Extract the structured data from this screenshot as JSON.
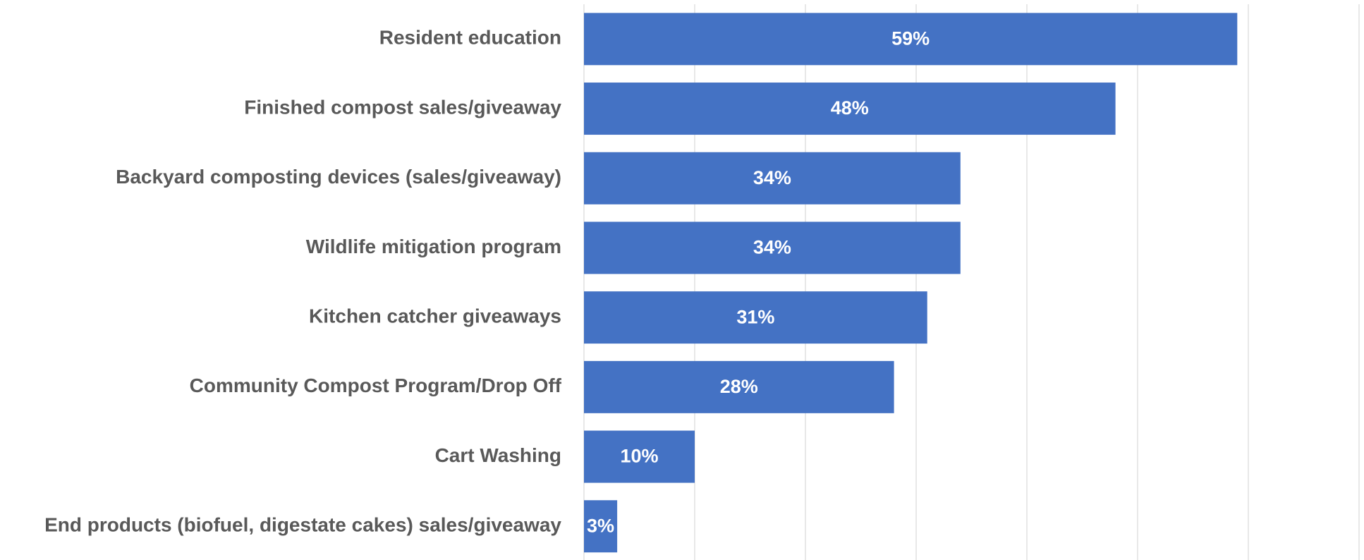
{
  "chart_data": {
    "type": "bar",
    "orientation": "horizontal",
    "categories": [
      "Resident education",
      "Finished compost sales/giveaway",
      "Backyard composting devices (sales/giveaway)",
      "Wildlife mitigation program",
      "Kitchen catcher giveaways",
      "Community Compost Program/Drop Off",
      "Cart Washing",
      "End products (biofuel, digestate cakes) sales/giveaway"
    ],
    "values": [
      59,
      48,
      34,
      34,
      31,
      28,
      10,
      3
    ],
    "value_labels": [
      "59%",
      "48%",
      "34%",
      "34%",
      "31%",
      "28%",
      "10%",
      "3%"
    ],
    "color": "#4472c4",
    "xlim": [
      0,
      70
    ],
    "xticks": [
      0,
      10,
      20,
      30,
      40,
      50,
      60,
      70
    ],
    "grid": true
  }
}
